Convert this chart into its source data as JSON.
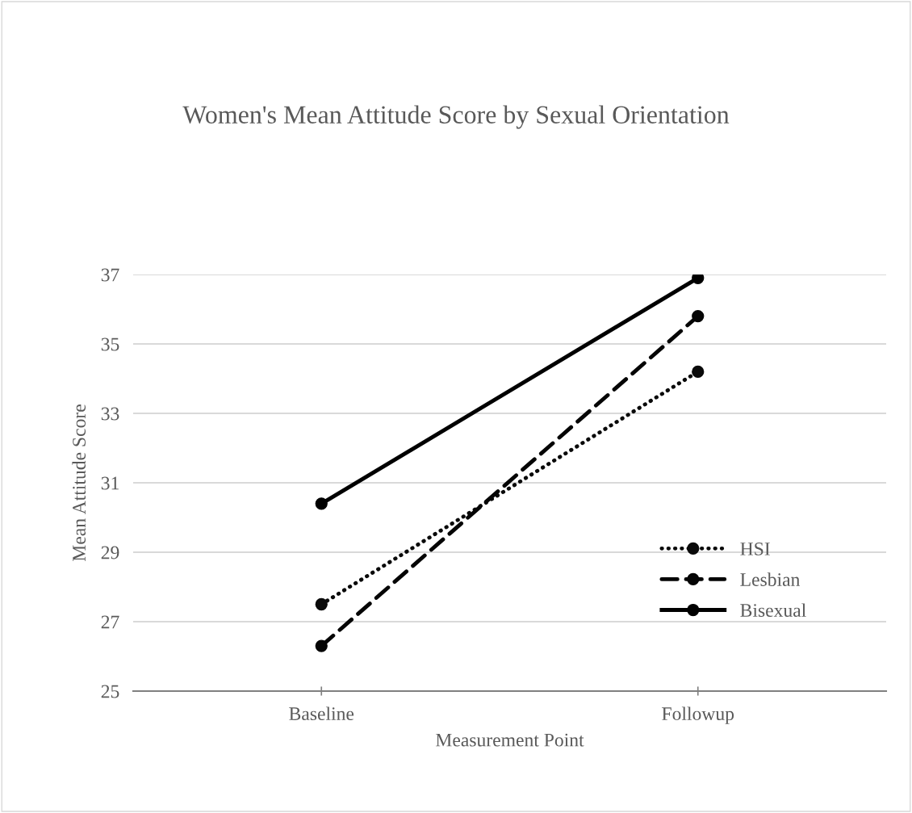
{
  "chart_data": {
    "type": "line",
    "title": "Women's Mean Attitude Score by Sexual Orientation",
    "xlabel": "Measurement Point",
    "ylabel": "Mean Attitude Score",
    "categories": [
      "Baseline",
      "Followup"
    ],
    "series": [
      {
        "name": "HSI",
        "color": "#0a0a0a",
        "line_style": "dotted",
        "values": [
          27.5,
          34.2
        ]
      },
      {
        "name": "Lesbian",
        "color": "#050505",
        "line_style": "dashed",
        "values": [
          26.3,
          35.8
        ]
      },
      {
        "name": "Bisexual",
        "color": "#000000",
        "line_style": "solid",
        "values": [
          30.4,
          36.9
        ]
      }
    ],
    "ylim": [
      25,
      37
    ],
    "yticks": [
      25,
      27,
      29,
      31,
      33,
      35,
      37
    ],
    "grid": "y",
    "legend": "bottom right",
    "marker": "circle"
  }
}
